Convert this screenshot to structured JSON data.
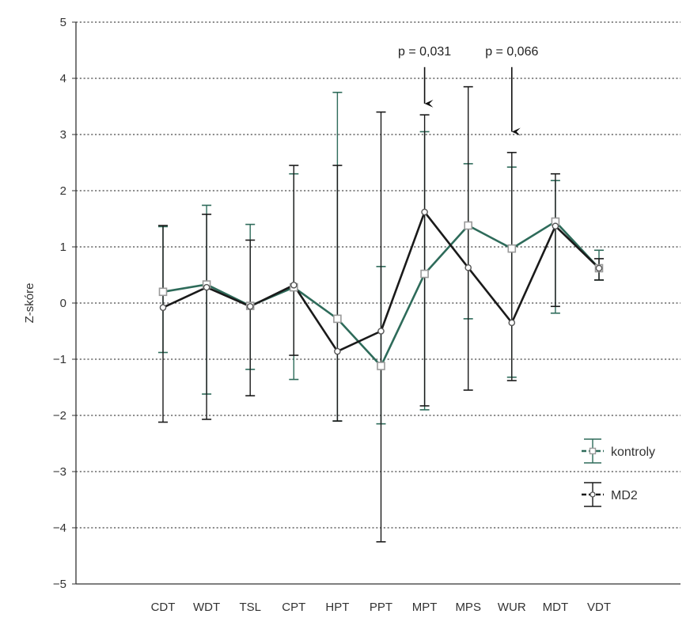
{
  "chart_data": {
    "type": "line",
    "ylabel": "Z-skóre",
    "ylim": [
      -5,
      5
    ],
    "yticks": [
      5,
      4,
      3,
      2,
      1,
      0,
      -1,
      -2,
      -3,
      -4,
      -5
    ],
    "ytick_labels": [
      "5",
      "4",
      "3",
      "2",
      "1",
      "0",
      "−1",
      "−2",
      "−3",
      "−4",
      "−5"
    ],
    "grid": "horizontal dotted",
    "legend_position": "lower-right",
    "categories": [
      "CDT",
      "WDT",
      "TSL",
      "CPT",
      "HPT",
      "PPT",
      "MPT",
      "MPS",
      "WUR",
      "MDT",
      "VDT"
    ],
    "series": [
      {
        "name": "kontroly",
        "color": "#2e6b5a",
        "marker": "open-square",
        "values": [
          0.2,
          0.33,
          -0.05,
          0.28,
          -0.28,
          -1.12,
          0.52,
          1.38,
          0.97,
          1.45,
          0.62
        ],
        "err_low": [
          -0.88,
          -1.62,
          -1.18,
          -1.36,
          -2.1,
          -2.15,
          -1.9,
          -0.28,
          -1.32,
          -0.18,
          0.41
        ],
        "err_high": [
          1.36,
          1.74,
          1.4,
          2.3,
          3.75,
          0.65,
          3.05,
          2.48,
          2.42,
          2.18,
          0.94
        ]
      },
      {
        "name": "MD2",
        "color": "#1a1a1a",
        "marker": "open-circle",
        "values": [
          -0.08,
          0.28,
          -0.06,
          0.32,
          -0.86,
          -0.5,
          1.62,
          0.63,
          -0.35,
          1.37,
          0.62
        ],
        "err_low": [
          -2.12,
          -2.07,
          -1.65,
          -0.93,
          -2.1,
          -4.25,
          -1.83,
          -1.55,
          -1.38,
          -0.06,
          0.41
        ],
        "err_high": [
          1.38,
          1.58,
          1.12,
          2.45,
          2.45,
          3.4,
          3.35,
          3.85,
          2.68,
          2.3,
          0.79
        ]
      }
    ],
    "annotations": [
      {
        "text": "p = 0,031",
        "category": "MPT",
        "arrow_from": 4.2,
        "arrow_to": 3.55
      },
      {
        "text": "p = 0,066",
        "category": "WUR",
        "arrow_from": 4.2,
        "arrow_to": 3.05
      }
    ]
  }
}
